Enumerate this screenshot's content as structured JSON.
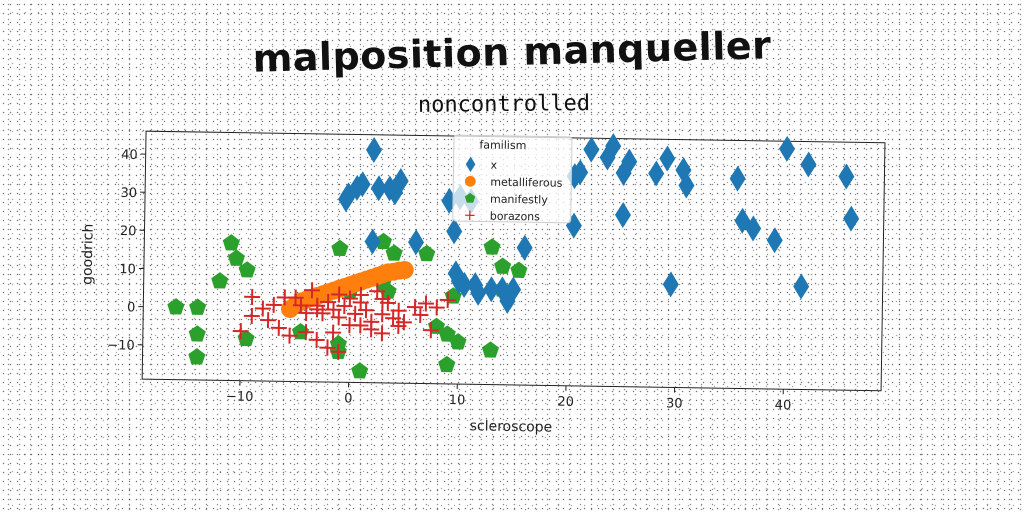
{
  "suptitle": "malposition manqueller",
  "chart_data": {
    "type": "scatter",
    "title": "noncontrolled",
    "xlabel": "scleroscope",
    "ylabel": "goodrich",
    "xlim": [
      -19,
      49
    ],
    "ylim": [
      -19,
      46
    ],
    "xticks": [
      -10,
      0,
      10,
      20,
      30,
      40
    ],
    "yticks": [
      -10,
      0,
      10,
      20,
      30,
      40
    ],
    "grid": false,
    "legend": {
      "title": "familism",
      "placement": "top-center"
    },
    "series": [
      {
        "name": "x",
        "marker": "diamond",
        "color": "#1f77b4",
        "points": [
          [
            2,
            42
          ],
          [
            -0.3,
            30
          ],
          [
            0.5,
            32
          ],
          [
            1,
            33
          ],
          [
            2.5,
            32
          ],
          [
            3.5,
            32
          ],
          [
            4,
            31
          ],
          [
            -0.5,
            29
          ],
          [
            4.5,
            34
          ],
          [
            9,
            29
          ],
          [
            10,
            30
          ],
          [
            11,
            29
          ],
          [
            9.5,
            21
          ],
          [
            6,
            18
          ],
          [
            2,
            18
          ],
          [
            9.7,
            10
          ],
          [
            10,
            8
          ],
          [
            10.5,
            7
          ],
          [
            11.5,
            7
          ],
          [
            11.8,
            5
          ],
          [
            13,
            6
          ],
          [
            14,
            6
          ],
          [
            15,
            6
          ],
          [
            14.5,
            3
          ],
          [
            16,
            17
          ],
          [
            22,
            43
          ],
          [
            24,
            44
          ],
          [
            25.5,
            40
          ],
          [
            23.5,
            41
          ],
          [
            25,
            37
          ],
          [
            21,
            37
          ],
          [
            20.5,
            36
          ],
          [
            29,
            41
          ],
          [
            28,
            37
          ],
          [
            30.5,
            38
          ],
          [
            30.8,
            34
          ],
          [
            35.5,
            36
          ],
          [
            40,
            44
          ],
          [
            42,
            40
          ],
          [
            45.5,
            37
          ],
          [
            46,
            26
          ],
          [
            25,
            26
          ],
          [
            20.5,
            23
          ],
          [
            36,
            25
          ],
          [
            37,
            23
          ],
          [
            39,
            20
          ],
          [
            29.5,
            8
          ],
          [
            41.5,
            8
          ]
        ]
      },
      {
        "name": "metalliferous",
        "marker": "circle",
        "color": "#ff7f0e",
        "points": [
          [
            -5.5,
            0
          ],
          [
            -5,
            1
          ],
          [
            -4.5,
            2
          ],
          [
            -4,
            2.5
          ],
          [
            -3.5,
            3
          ],
          [
            -3,
            3.5
          ],
          [
            -2.5,
            4
          ],
          [
            -2,
            4.5
          ],
          [
            -1.5,
            5
          ],
          [
            -1,
            5.5
          ],
          [
            -0.5,
            6
          ],
          [
            0,
            6.5
          ],
          [
            0.5,
            7
          ],
          [
            1,
            7.5
          ],
          [
            1.5,
            8
          ],
          [
            2,
            8.5
          ],
          [
            2.5,
            9
          ],
          [
            3,
            9.5
          ],
          [
            3.5,
            10
          ],
          [
            4,
            10.2
          ],
          [
            4.5,
            10.5
          ],
          [
            5,
            10.7
          ]
        ]
      },
      {
        "name": "manifestly",
        "marker": "pentagon",
        "color": "#2ca02c",
        "points": [
          [
            -11,
            17
          ],
          [
            -10.5,
            13
          ],
          [
            -9.5,
            10
          ],
          [
            -12,
            7
          ],
          [
            -16,
            0
          ],
          [
            -14,
            0
          ],
          [
            -14,
            -7
          ],
          [
            -14,
            -13
          ],
          [
            -9.5,
            -8
          ],
          [
            -4.5,
            -6
          ],
          [
            -1,
            -9
          ],
          [
            -1,
            -11
          ],
          [
            1,
            -16
          ],
          [
            -1,
            16
          ],
          [
            3,
            18
          ],
          [
            4,
            15
          ],
          [
            7,
            15
          ],
          [
            13,
            17
          ],
          [
            14,
            12
          ],
          [
            15.5,
            11
          ],
          [
            14,
            6
          ],
          [
            9.5,
            4
          ],
          [
            8,
            -4
          ],
          [
            9,
            -6
          ],
          [
            10,
            -8
          ],
          [
            13,
            -10
          ],
          [
            9,
            -14
          ],
          [
            0,
            5
          ],
          [
            3.5,
            5
          ],
          [
            3,
            7
          ]
        ]
      },
      {
        "name": "borazons",
        "marker": "plus",
        "color": "#d62728",
        "points": [
          [
            -9,
            3
          ],
          [
            -7,
            1
          ],
          [
            -6,
            3
          ],
          [
            -5,
            3
          ],
          [
            -4.5,
            1
          ],
          [
            -3,
            0
          ],
          [
            -2.5,
            -1
          ],
          [
            -2,
            2
          ],
          [
            -1.5,
            0
          ],
          [
            -1,
            -2
          ],
          [
            -0.5,
            1
          ],
          [
            0,
            3
          ],
          [
            0.5,
            -1
          ],
          [
            1,
            2
          ],
          [
            1.5,
            0
          ],
          [
            2,
            -3
          ],
          [
            3,
            -1
          ],
          [
            3.5,
            2
          ],
          [
            4,
            -2
          ],
          [
            4.5,
            0
          ],
          [
            5,
            -3
          ],
          [
            6,
            1
          ],
          [
            6.5,
            -1
          ],
          [
            7,
            2
          ],
          [
            7.5,
            -5
          ],
          [
            -9,
            -2
          ],
          [
            -6.5,
            -5
          ],
          [
            -5.5,
            -7
          ],
          [
            -4,
            -6
          ],
          [
            -3,
            -8
          ],
          [
            -2,
            -10
          ],
          [
            -1,
            -11
          ],
          [
            -1.5,
            -6
          ],
          [
            0,
            -4
          ],
          [
            1,
            -4
          ],
          [
            2,
            -5
          ],
          [
            3,
            -6
          ],
          [
            4.5,
            -4
          ],
          [
            -7.5,
            -3
          ],
          [
            -8,
            0
          ],
          [
            -10,
            -6
          ],
          [
            2.5,
            5
          ],
          [
            -3.5,
            5
          ],
          [
            -1,
            4
          ],
          [
            1,
            4
          ],
          [
            3,
            3
          ],
          [
            8,
            1
          ],
          [
            9,
            3
          ],
          [
            -3,
            1
          ],
          [
            -4,
            -1
          ]
        ]
      }
    ]
  }
}
